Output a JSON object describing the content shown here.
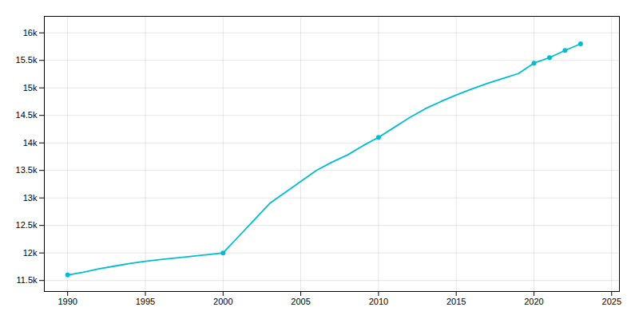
{
  "chart_data": {
    "type": "line",
    "x": [
      1990,
      1991,
      1992,
      1993,
      1994,
      1995,
      1996,
      1997,
      1998,
      1999,
      2000,
      2001,
      2002,
      2003,
      2004,
      2005,
      2006,
      2007,
      2008,
      2009,
      2010,
      2011,
      2012,
      2013,
      2014,
      2015,
      2016,
      2017,
      2018,
      2019,
      2020,
      2021,
      2022,
      2023
    ],
    "series": [
      {
        "type": "line",
        "color": "#00bcd4",
        "values": [
          11600,
          11650,
          11710,
          11760,
          11810,
          11850,
          11880,
          11910,
          11940,
          11970,
          12000,
          12300,
          12600,
          12900,
          13100,
          13300,
          13500,
          13650,
          13780,
          13950,
          14100,
          14280,
          14460,
          14620,
          14750,
          14870,
          14980,
          15080,
          15170,
          15260,
          15450,
          15550,
          15680,
          15800
        ]
      },
      {
        "type": "scatter",
        "color": "#00bcd4",
        "marker": "o",
        "x": [
          1990,
          2000,
          2010,
          2020,
          2021,
          2022,
          2023
        ],
        "values": [
          11600,
          12000,
          14100,
          15450,
          15550,
          15680,
          15800
        ]
      }
    ],
    "xlim": [
      1988.5,
      2025.5
    ],
    "ylim": [
      11300,
      16300
    ],
    "xticks": [
      1990,
      1995,
      2000,
      2005,
      2010,
      2015,
      2020,
      2025
    ],
    "yticks": [
      {
        "value": 11500,
        "label": "11.5k"
      },
      {
        "value": 12000,
        "label": "12k"
      },
      {
        "value": 12500,
        "label": "12.5k"
      },
      {
        "value": 13000,
        "label": "13k"
      },
      {
        "value": 13500,
        "label": "13.5k"
      },
      {
        "value": 14000,
        "label": "14k"
      },
      {
        "value": 14500,
        "label": "14.5k"
      },
      {
        "value": 15000,
        "label": "15k"
      },
      {
        "value": 15500,
        "label": "15.5k"
      },
      {
        "value": 16000,
        "label": "16k"
      }
    ],
    "grid": true
  }
}
